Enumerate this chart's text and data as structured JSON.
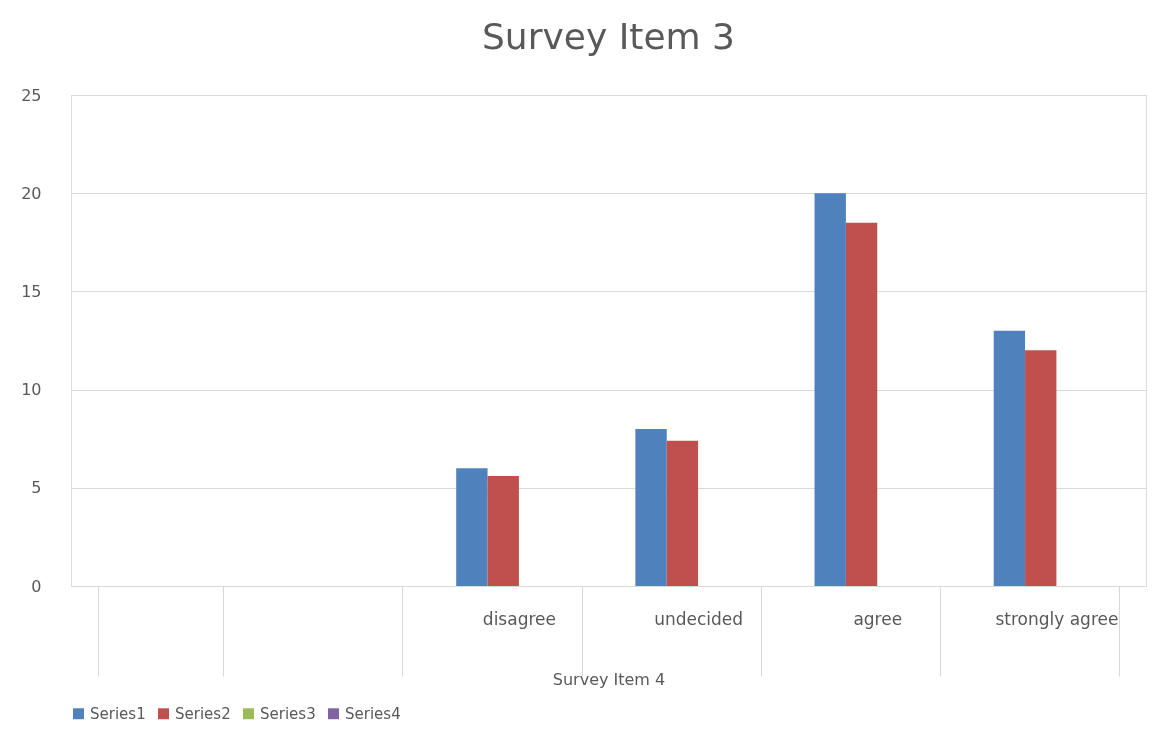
{
  "chart_data": {
    "type": "bar",
    "title": "Survey Item 3",
    "xlabel": "Survey Item 4",
    "categories": [
      null,
      null,
      "disagree",
      "undecided",
      "agree",
      "strongly agree"
    ],
    "series": [
      {
        "name": "Series1",
        "color": "#4f81bd",
        "values": [
          null,
          null,
          6,
          8,
          20,
          13
        ]
      },
      {
        "name": "Series2",
        "color": "#c0504d",
        "values": [
          null,
          null,
          5.6,
          7.4,
          18.5,
          12
        ]
      },
      {
        "name": "Series3",
        "color": "#9bbb59",
        "values": [
          null,
          null,
          null,
          null,
          null,
          null
        ]
      },
      {
        "name": "Series4",
        "color": "#8064a2",
        "values": [
          null,
          null,
          null,
          null,
          null,
          null
        ]
      }
    ],
    "ylim": [
      0,
      25
    ],
    "yticks": [
      0,
      5,
      10,
      15,
      20,
      25
    ],
    "grid": "y",
    "legend": "bottom"
  }
}
